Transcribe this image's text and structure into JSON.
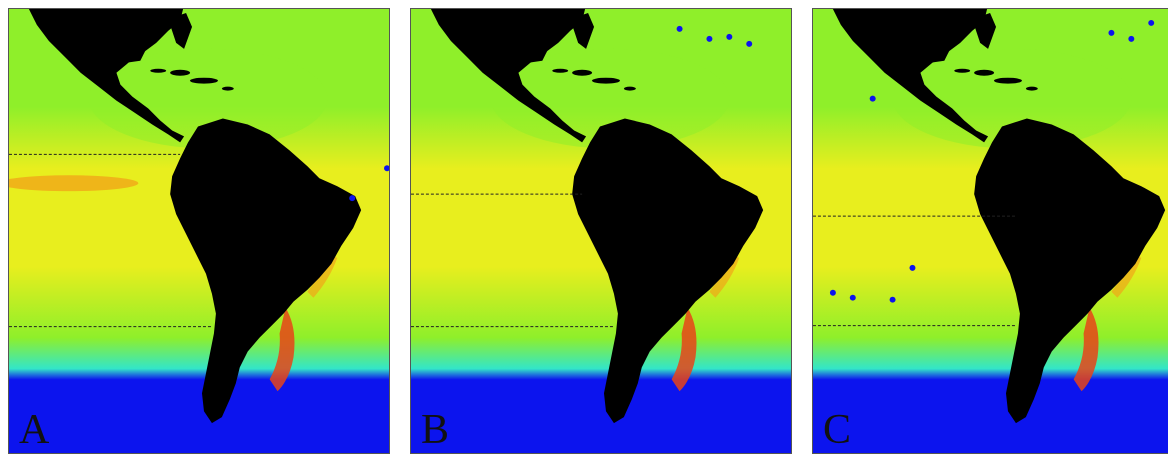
{
  "figure": {
    "panels": [
      {
        "label": "A",
        "dashed_lines": 2
      },
      {
        "label": "B",
        "dashed_lines": 2
      },
      {
        "label": "C",
        "dashed_lines": 2
      }
    ],
    "colors": {
      "land": "#000000",
      "ocean_low": "#0c14ee",
      "ocean_cyan": "#33e6c8",
      "ocean_green": "#8fef2a",
      "ocean_yellow": "#e8ee1e",
      "ocean_orange": "#f0a618",
      "ocean_red": "#e84418",
      "boundary_line": "#222222"
    }
  }
}
